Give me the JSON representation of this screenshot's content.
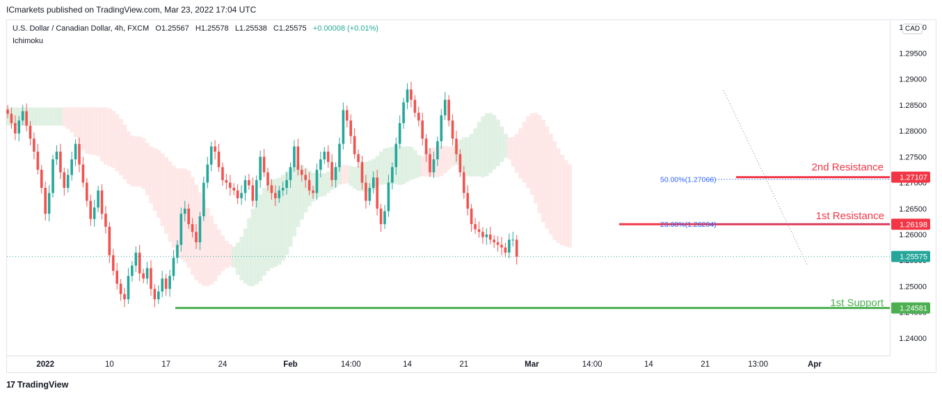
{
  "header": {
    "publisher": "ICmarkets published on TradingView.com, Mar 23, 2022 17:04 UTC"
  },
  "legend": {
    "symbol": "U.S. Dollar / Canadian Dollar, 4h, FXCM",
    "open": "O1.25567",
    "high": "H1.25578",
    "low": "L1.25538",
    "close": "C1.25575",
    "change": "+0.00008 (+0.01%)",
    "indicator": "Ichimoku"
  },
  "currency_badge": "CAD",
  "footer": {
    "brand": "TradingView"
  },
  "colors": {
    "up": "#26a69a",
    "down": "#ef5350",
    "resistance": "#f23645",
    "support": "#4caf50",
    "fib": "#2962ff",
    "cloud_bull": "#d7ecdb",
    "cloud_bear": "#fde0e0"
  },
  "chart_data": {
    "type": "candlestick",
    "title": "",
    "xlabel": "",
    "ylabel": "",
    "ylim": [
      1.2365,
      1.3015
    ],
    "y_ticks": [
      "1.30000",
      "1.29500",
      "1.29000",
      "1.28500",
      "1.28000",
      "1.27500",
      "1.27000",
      "1.26500",
      "1.26000",
      "1.25500",
      "1.25000",
      "1.24500",
      "1.24000"
    ],
    "y_tick_values": [
      1.3,
      1.295,
      1.29,
      1.285,
      1.28,
      1.275,
      1.27,
      1.265,
      1.26,
      1.255,
      1.25,
      1.245,
      1.24
    ],
    "x_ticks": [
      "2022",
      "10",
      "17",
      "24",
      "Feb",
      "14:00",
      "14",
      "21",
      "Mar",
      "14:00",
      "14",
      "21",
      "13:00",
      "Apr"
    ],
    "x_tick_index": [
      10,
      27,
      42,
      57,
      75,
      91,
      106,
      121,
      139,
      155,
      170,
      185,
      199,
      214
    ],
    "grid": false,
    "close_series": [
      1.2833,
      1.2815,
      1.2795,
      1.282,
      1.2838,
      1.281,
      1.2785,
      1.276,
      1.2725,
      1.269,
      1.264,
      1.268,
      1.2745,
      1.276,
      1.272,
      1.269,
      1.2715,
      1.2745,
      1.2775,
      1.2735,
      1.27,
      1.2665,
      1.263,
      1.2652,
      1.2685,
      1.264,
      1.2615,
      1.256,
      1.253,
      1.2505,
      1.2485,
      1.2475,
      1.252,
      1.254,
      1.2565,
      1.2525,
      1.2515,
      1.2535,
      1.2495,
      1.2475,
      1.249,
      1.2515,
      1.2495,
      1.252,
      1.2555,
      1.258,
      1.264,
      1.265,
      1.262,
      1.2605,
      1.2585,
      1.2635,
      1.27,
      1.2735,
      1.277,
      1.276,
      1.273,
      1.2705,
      1.27,
      1.269,
      1.2685,
      1.267,
      1.268,
      1.2705,
      1.2695,
      1.2665,
      1.2705,
      1.275,
      1.272,
      1.2695,
      1.268,
      1.267,
      1.2685,
      1.269,
      1.2705,
      1.273,
      1.277,
      1.2725,
      1.2715,
      1.2705,
      1.2685,
      1.268,
      1.2725,
      1.2745,
      1.276,
      1.274,
      1.2705,
      1.273,
      1.2775,
      1.284,
      1.282,
      1.279,
      1.2755,
      1.274,
      1.27,
      1.2665,
      1.269,
      1.271,
      1.265,
      1.262,
      1.2645,
      1.27,
      1.273,
      1.2775,
      1.2815,
      1.2855,
      1.288,
      1.286,
      1.2835,
      1.282,
      1.2785,
      1.2755,
      1.272,
      1.2745,
      1.278,
      1.283,
      1.286,
      1.282,
      1.2785,
      1.2755,
      1.272,
      1.268,
      1.265,
      1.262,
      1.261,
      1.2605,
      1.2595,
      1.26,
      1.259,
      1.2585,
      1.258,
      1.2575,
      1.2565,
      1.259,
      1.259,
      1.2557
    ],
    "resistance_2": {
      "label": "2nd Resistance",
      "price_label": "1.27107",
      "value": 1.27107
    },
    "resistance_1": {
      "label": "1st Resistance",
      "price_label": "1.26198",
      "value": 1.26198
    },
    "support_1": {
      "label": "1st Support",
      "price_label": "1.24581",
      "value": 1.24581
    },
    "last_price": {
      "price_label": "1.25575",
      "value": 1.25575
    },
    "fib_levels": [
      {
        "label": "50.00%(1.27066)",
        "value": 1.27066
      },
      {
        "label": "23.60%(1.26204)",
        "value": 1.26204
      }
    ]
  }
}
